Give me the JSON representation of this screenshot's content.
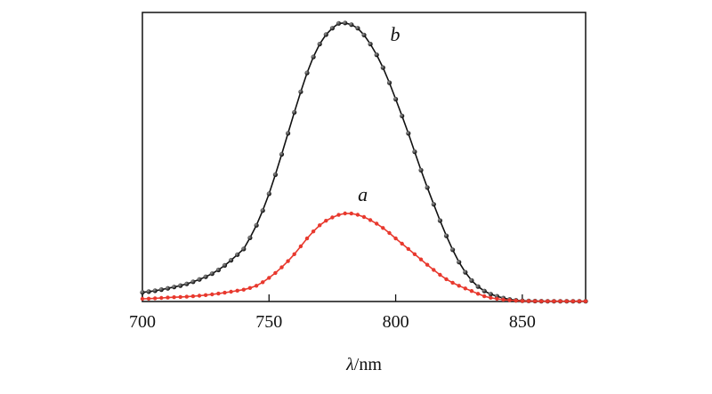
{
  "chart_data": {
    "type": "line",
    "title": "",
    "xlabel_symbol": "λ",
    "xlabel_unit": "/nm",
    "ylabel": "",
    "xlim": [
      700,
      875
    ],
    "ylim": [
      0,
      1.1
    ],
    "xticks": [
      700,
      750,
      800,
      850
    ],
    "grid": false,
    "legend": "none",
    "series": [
      {
        "name": "b",
        "color": "#111111",
        "marker": "sphere",
        "x": [
          700,
          710,
          720,
          730,
          740,
          745,
          750,
          755,
          760,
          765,
          770,
          775,
          778,
          780,
          785,
          790,
          795,
          800,
          805,
          810,
          815,
          820,
          825,
          830,
          835,
          840,
          845,
          850,
          860,
          875
        ],
        "y": [
          0.035,
          0.05,
          0.075,
          0.12,
          0.2,
          0.29,
          0.41,
          0.56,
          0.72,
          0.87,
          0.98,
          1.04,
          1.06,
          1.06,
          1.04,
          0.98,
          0.89,
          0.77,
          0.64,
          0.5,
          0.37,
          0.25,
          0.15,
          0.08,
          0.04,
          0.02,
          0.008,
          0.003,
          0.001,
          0.001
        ]
      },
      {
        "name": "a",
        "color": "#e8392e",
        "marker": "dot",
        "x": [
          700,
          710,
          720,
          730,
          740,
          745,
          750,
          755,
          760,
          765,
          770,
          775,
          780,
          785,
          790,
          795,
          800,
          805,
          810,
          815,
          820,
          825,
          830,
          835,
          840,
          845,
          850,
          860,
          875
        ],
        "y": [
          0.01,
          0.015,
          0.02,
          0.03,
          0.045,
          0.06,
          0.09,
          0.13,
          0.18,
          0.24,
          0.29,
          0.32,
          0.335,
          0.33,
          0.31,
          0.28,
          0.24,
          0.2,
          0.16,
          0.12,
          0.085,
          0.06,
          0.04,
          0.02,
          0.01,
          0.005,
          0.002,
          0.001,
          0.001
        ]
      }
    ]
  }
}
